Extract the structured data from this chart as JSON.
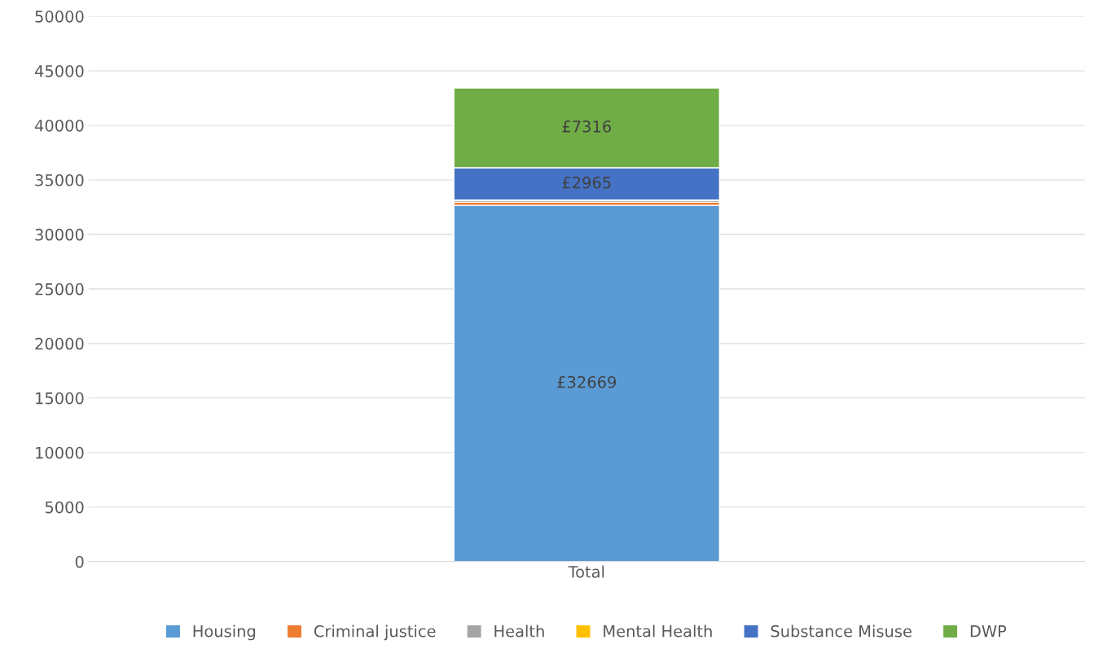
{
  "chart_data": {
    "type": "bar",
    "stacked": true,
    "categories": [
      "Total"
    ],
    "series": [
      {
        "name": "Housing",
        "color": "#5b9bd5",
        "values": [
          32669
        ],
        "value_labels": [
          "£32669"
        ]
      },
      {
        "name": "Criminal justice",
        "color": "#ed7d31",
        "values": [
          280
        ],
        "value_labels": [
          null
        ]
      },
      {
        "name": "Health",
        "color": "#a5a5a5",
        "values": [
          200
        ],
        "value_labels": [
          null
        ]
      },
      {
        "name": "Mental Health",
        "color": "#ffc000",
        "values": [
          0
        ],
        "value_labels": [
          null
        ]
      },
      {
        "name": "Substance Misuse",
        "color": "#4472c4",
        "values": [
          2965
        ],
        "value_labels": [
          "£2965"
        ]
      },
      {
        "name": "DWP",
        "color": "#70ad47",
        "values": [
          7316
        ],
        "value_labels": [
          "£7316"
        ]
      }
    ],
    "ylim": [
      0,
      50000
    ],
    "yticks": [
      0,
      5000,
      10000,
      15000,
      20000,
      25000,
      30000,
      35000,
      40000,
      45000,
      50000
    ],
    "grid": "y",
    "legend": "bottom"
  }
}
